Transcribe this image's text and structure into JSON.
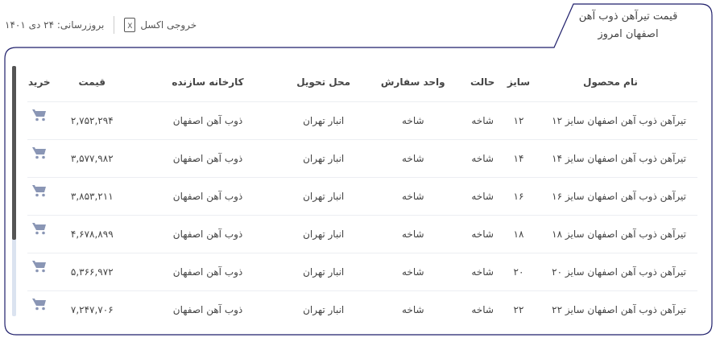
{
  "title": {
    "line1": "قیمت تیرآهن ذوب آهن",
    "line2": "اصفهان امروز"
  },
  "toolbar": {
    "export_label": "خروجی اکسل",
    "updated_label": "بروزرسانی: ۲۴ دی ۱۴۰۱",
    "export_icon": "excel-file-icon"
  },
  "colors": {
    "border": "#1f1f6b",
    "cart": "#8a96b5",
    "scroll_thumb": "#555555",
    "scroll_track": "#dbe3f0"
  },
  "table": {
    "headers": {
      "name": "نام محصول",
      "size": "سایز",
      "state": "حالت",
      "unit": "واحد سفارش",
      "delivery": "محل تحویل",
      "factory": "کارخانه سازنده",
      "price": "قیمت",
      "buy": "خرید"
    },
    "rows": [
      {
        "name": "تیرآهن ذوب آهن اصفهان سایز ۱۲",
        "size": "۱۲",
        "state": "شاخه",
        "unit": "شاخه",
        "delivery": "انبار تهران",
        "factory": "ذوب آهن اصفهان",
        "price": "۲,۷۵۲,۲۹۴"
      },
      {
        "name": "تیرآهن ذوب آهن اصفهان سایز ۱۴",
        "size": "۱۴",
        "state": "شاخه",
        "unit": "شاخه",
        "delivery": "انبار تهران",
        "factory": "ذوب آهن اصفهان",
        "price": "۳,۵۷۷,۹۸۲"
      },
      {
        "name": "تیرآهن ذوب آهن اصفهان سایز ۱۶",
        "size": "۱۶",
        "state": "شاخه",
        "unit": "شاخه",
        "delivery": "انبار تهران",
        "factory": "ذوب آهن اصفهان",
        "price": "۳,۸۵۳,۲۱۱"
      },
      {
        "name": "تیرآهن ذوب آهن اصفهان سایز ۱۸",
        "size": "۱۸",
        "state": "شاخه",
        "unit": "شاخه",
        "delivery": "انبار تهران",
        "factory": "ذوب آهن اصفهان",
        "price": "۴,۶۷۸,۸۹۹"
      },
      {
        "name": "تیرآهن ذوب آهن اصفهان سایز ۲۰",
        "size": "۲۰",
        "state": "شاخه",
        "unit": "شاخه",
        "delivery": "انبار تهران",
        "factory": "ذوب آهن اصفهان",
        "price": "۵,۳۶۶,۹۷۲"
      },
      {
        "name": "تیرآهن ذوب آهن اصفهان سایز ۲۲",
        "size": "۲۲",
        "state": "شاخه",
        "unit": "شاخه",
        "delivery": "انبار تهران",
        "factory": "ذوب آهن اصفهان",
        "price": "۷,۲۴۷,۷۰۶"
      }
    ]
  }
}
